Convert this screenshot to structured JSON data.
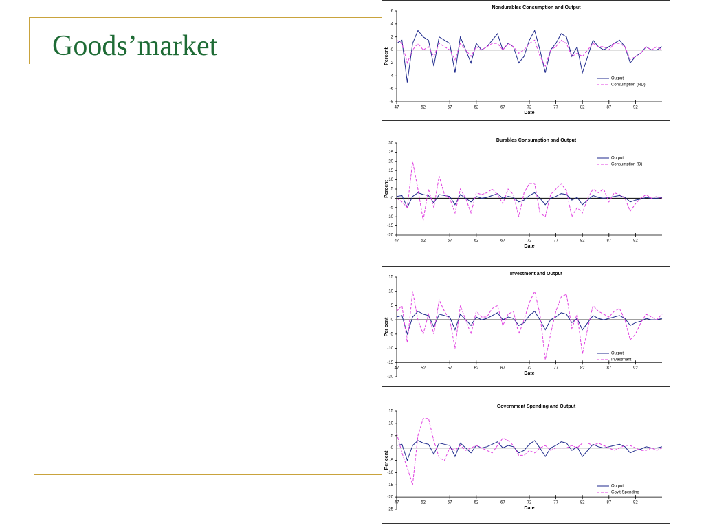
{
  "title": "Goods’market",
  "chart_data": [
    {
      "type": "line",
      "title": "Nondurables Consumption and Output",
      "xlabel": "Date",
      "ylabel": "Percent",
      "x": [
        47,
        48,
        49,
        50,
        51,
        52,
        53,
        54,
        55,
        56,
        57,
        58,
        59,
        60,
        61,
        62,
        63,
        64,
        65,
        66,
        67,
        68,
        69,
        70,
        71,
        72,
        73,
        74,
        75,
        76,
        77,
        78,
        79,
        80,
        81,
        82,
        83,
        84,
        85,
        86,
        87,
        88,
        89,
        90,
        91,
        92,
        93,
        94,
        95,
        96,
        97
      ],
      "series": [
        {
          "name": "Output",
          "color": "#1f2a8c",
          "dashed": false,
          "values": [
            1,
            1.5,
            -5,
            1,
            3,
            2,
            1.5,
            -2.5,
            2,
            1.5,
            1,
            -3.5,
            2,
            0,
            -2,
            1,
            0,
            0.5,
            1.5,
            2.5,
            0,
            1,
            0.5,
            -2,
            -1,
            1.5,
            3,
            0,
            -3.5,
            0,
            1,
            2.5,
            2,
            -1,
            0.5,
            -3.5,
            -1,
            1.5,
            0.5,
            0,
            0.5,
            1,
            1.5,
            0.5,
            -2,
            -1,
            -0.5,
            0.5,
            0,
            0,
            0.5
          ]
        },
        {
          "name": "Consumption (ND)",
          "color": "#e040e0",
          "dashed": true,
          "values": [
            1.5,
            1,
            -2,
            0,
            1,
            0,
            0.5,
            -1,
            1,
            0.5,
            0,
            -1.5,
            1,
            0,
            -1,
            0.5,
            0,
            0.5,
            1,
            1,
            0,
            1,
            0.5,
            -0.5,
            0,
            1,
            1.5,
            -1,
            -2.5,
            0,
            0.5,
            1.5,
            1,
            -1,
            -0.5,
            -1,
            0,
            1,
            0.5,
            0.5,
            0,
            1,
            1,
            0.5,
            -1.5,
            -1,
            -0.5,
            0.5,
            0,
            0.5,
            0
          ]
        }
      ],
      "xlim": [
        47,
        97
      ],
      "xticks": [
        47,
        52,
        57,
        62,
        67,
        72,
        77,
        82,
        87,
        92
      ],
      "ylim": [
        -8,
        6
      ],
      "yticks": [
        -8,
        -6,
        -4,
        -2,
        0,
        2,
        4,
        6
      ],
      "xaxis_y": -8,
      "legend": "lower right"
    },
    {
      "type": "line",
      "title": "Durables Consumption and Output",
      "xlabel": "Date",
      "ylabel": "Percent",
      "x": [
        47,
        48,
        49,
        50,
        51,
        52,
        53,
        54,
        55,
        56,
        57,
        58,
        59,
        60,
        61,
        62,
        63,
        64,
        65,
        66,
        67,
        68,
        69,
        70,
        71,
        72,
        73,
        74,
        75,
        76,
        77,
        78,
        79,
        80,
        81,
        82,
        83,
        84,
        85,
        86,
        87,
        88,
        89,
        90,
        91,
        92,
        93,
        94,
        95,
        96,
        97
      ],
      "series": [
        {
          "name": "Output",
          "color": "#1f2a8c",
          "dashed": false,
          "values": [
            1,
            1.5,
            -5,
            1,
            3,
            2,
            1.5,
            -2.5,
            2,
            1.5,
            1,
            -3.5,
            2,
            0,
            -2,
            1,
            0,
            0.5,
            1.5,
            2.5,
            0,
            1,
            0.5,
            -2,
            -1,
            1.5,
            3,
            0,
            -3.5,
            0,
            1,
            2.5,
            2,
            -1,
            0.5,
            -3.5,
            -1,
            1.5,
            0.5,
            0,
            0.5,
            1,
            1.5,
            0.5,
            -2,
            -1,
            -0.5,
            0.5,
            0,
            0,
            0.5
          ]
        },
        {
          "name": "Consumption (D)",
          "color": "#e040e0",
          "dashed": true,
          "values": [
            0,
            -2,
            -5,
            20,
            5,
            -12,
            5,
            -5,
            12,
            2,
            0,
            -8,
            5,
            0,
            -8,
            3,
            2,
            3,
            5,
            2,
            -3,
            5,
            2,
            -10,
            3,
            8,
            8,
            -8,
            -10,
            2,
            5,
            8,
            4,
            -10,
            -5,
            -8,
            0,
            5,
            3,
            5,
            -2,
            3,
            2,
            0,
            -7,
            -3,
            0,
            2,
            0,
            1,
            0
          ]
        }
      ],
      "xlim": [
        47,
        97
      ],
      "xticks": [
        47,
        52,
        57,
        62,
        67,
        72,
        77,
        82,
        87,
        92
      ],
      "ylim": [
        -20,
        30
      ],
      "yticks": [
        -20,
        -15,
        -10,
        -5,
        0,
        5,
        10,
        15,
        20,
        25,
        30
      ],
      "xaxis_y": -20,
      "legend": "upper right"
    },
    {
      "type": "line",
      "title": "Investment and Output",
      "xlabel": "Date",
      "ylabel": "Per cent",
      "x": [
        47,
        48,
        49,
        50,
        51,
        52,
        53,
        54,
        55,
        56,
        57,
        58,
        59,
        60,
        61,
        62,
        63,
        64,
        65,
        66,
        67,
        68,
        69,
        70,
        71,
        72,
        73,
        74,
        75,
        76,
        77,
        78,
        79,
        80,
        81,
        82,
        83,
        84,
        85,
        86,
        87,
        88,
        89,
        90,
        91,
        92,
        93,
        94,
        95,
        96,
        97
      ],
      "series": [
        {
          "name": "Output",
          "color": "#1f2a8c",
          "dashed": false,
          "values": [
            1,
            1.5,
            -5,
            1,
            3,
            2,
            1.5,
            -2.5,
            2,
            1.5,
            1,
            -3.5,
            2,
            0,
            -2,
            1,
            0,
            0.5,
            1.5,
            2.5,
            0,
            1,
            0.5,
            -2,
            -1,
            1.5,
            3,
            0,
            -3.5,
            0,
            1,
            2.5,
            2,
            -1,
            0.5,
            -3.5,
            -1,
            1.5,
            0.5,
            0,
            0.5,
            1,
            1.5,
            0.5,
            -2,
            -1,
            -0.5,
            0.5,
            0,
            0,
            0.5
          ]
        },
        {
          "name": "Investment",
          "color": "#e040e0",
          "dashed": true,
          "values": [
            3,
            5,
            -8,
            10,
            0,
            -5,
            2,
            -5,
            7,
            3,
            0,
            -10,
            5,
            0,
            -5,
            3,
            1,
            1,
            4,
            5,
            -2,
            2,
            3,
            -5,
            0,
            6,
            10,
            2,
            -14,
            -5,
            3,
            8,
            9,
            -3,
            2,
            -12,
            -3,
            5,
            3,
            2,
            1,
            3,
            4,
            0,
            -7,
            -5,
            -1,
            2,
            1,
            0,
            2
          ]
        }
      ],
      "xlim": [
        47,
        97
      ],
      "xticks": [
        47,
        52,
        57,
        62,
        67,
        72,
        77,
        82,
        87,
        92
      ],
      "ylim": [
        -20,
        15
      ],
      "yticks": [
        -20,
        -15,
        -10,
        -5,
        0,
        5,
        10,
        15
      ],
      "xaxis_y": -15,
      "legend": "lower right"
    },
    {
      "type": "line",
      "title": "Government Spending and Output",
      "xlabel": "Date",
      "ylabel": "Per cent",
      "x": [
        47,
        48,
        49,
        50,
        51,
        52,
        53,
        54,
        55,
        56,
        57,
        58,
        59,
        60,
        61,
        62,
        63,
        64,
        65,
        66,
        67,
        68,
        69,
        70,
        71,
        72,
        73,
        74,
        75,
        76,
        77,
        78,
        79,
        80,
        81,
        82,
        83,
        84,
        85,
        86,
        87,
        88,
        89,
        90,
        91,
        92,
        93,
        94,
        95,
        96,
        97
      ],
      "series": [
        {
          "name": "Output",
          "color": "#1f2a8c",
          "dashed": false,
          "values": [
            1,
            1.5,
            -5,
            1,
            3,
            2,
            1.5,
            -2.5,
            2,
            1.5,
            1,
            -3.5,
            2,
            0,
            -2,
            1,
            0,
            0.5,
            1.5,
            2.5,
            0,
            1,
            0.5,
            -2,
            -1,
            1.5,
            3,
            0,
            -3.5,
            0,
            1,
            2.5,
            2,
            -1,
            0.5,
            -3.5,
            -1,
            1.5,
            0.5,
            0,
            0.5,
            1,
            1.5,
            0.5,
            -2,
            -1,
            -0.5,
            0.5,
            0,
            0,
            0.5
          ]
        },
        {
          "name": "Gov't Spending",
          "color": "#e040e0",
          "dashed": true,
          "values": [
            6,
            -2,
            -8,
            -15,
            5,
            12,
            12,
            3,
            -4,
            -5,
            0,
            -1,
            1,
            -1,
            0,
            1,
            0,
            -1,
            -2,
            1,
            4,
            3,
            1,
            -3,
            -3,
            -1,
            -2,
            0,
            1,
            -1,
            0,
            0,
            0,
            1,
            0,
            2,
            2,
            1,
            2,
            1,
            0,
            -1,
            0,
            1,
            1,
            0,
            -1,
            -1,
            0,
            -1,
            0
          ]
        }
      ],
      "xlim": [
        47,
        97
      ],
      "xticks": [
        47,
        52,
        57,
        62,
        67,
        72,
        77,
        82,
        87,
        92
      ],
      "ylim": [
        -25,
        15
      ],
      "yticks": [
        -25,
        -20,
        -15,
        -10,
        -5,
        0,
        5,
        10,
        15
      ],
      "xaxis_y": -20,
      "legend": "lower right"
    }
  ]
}
